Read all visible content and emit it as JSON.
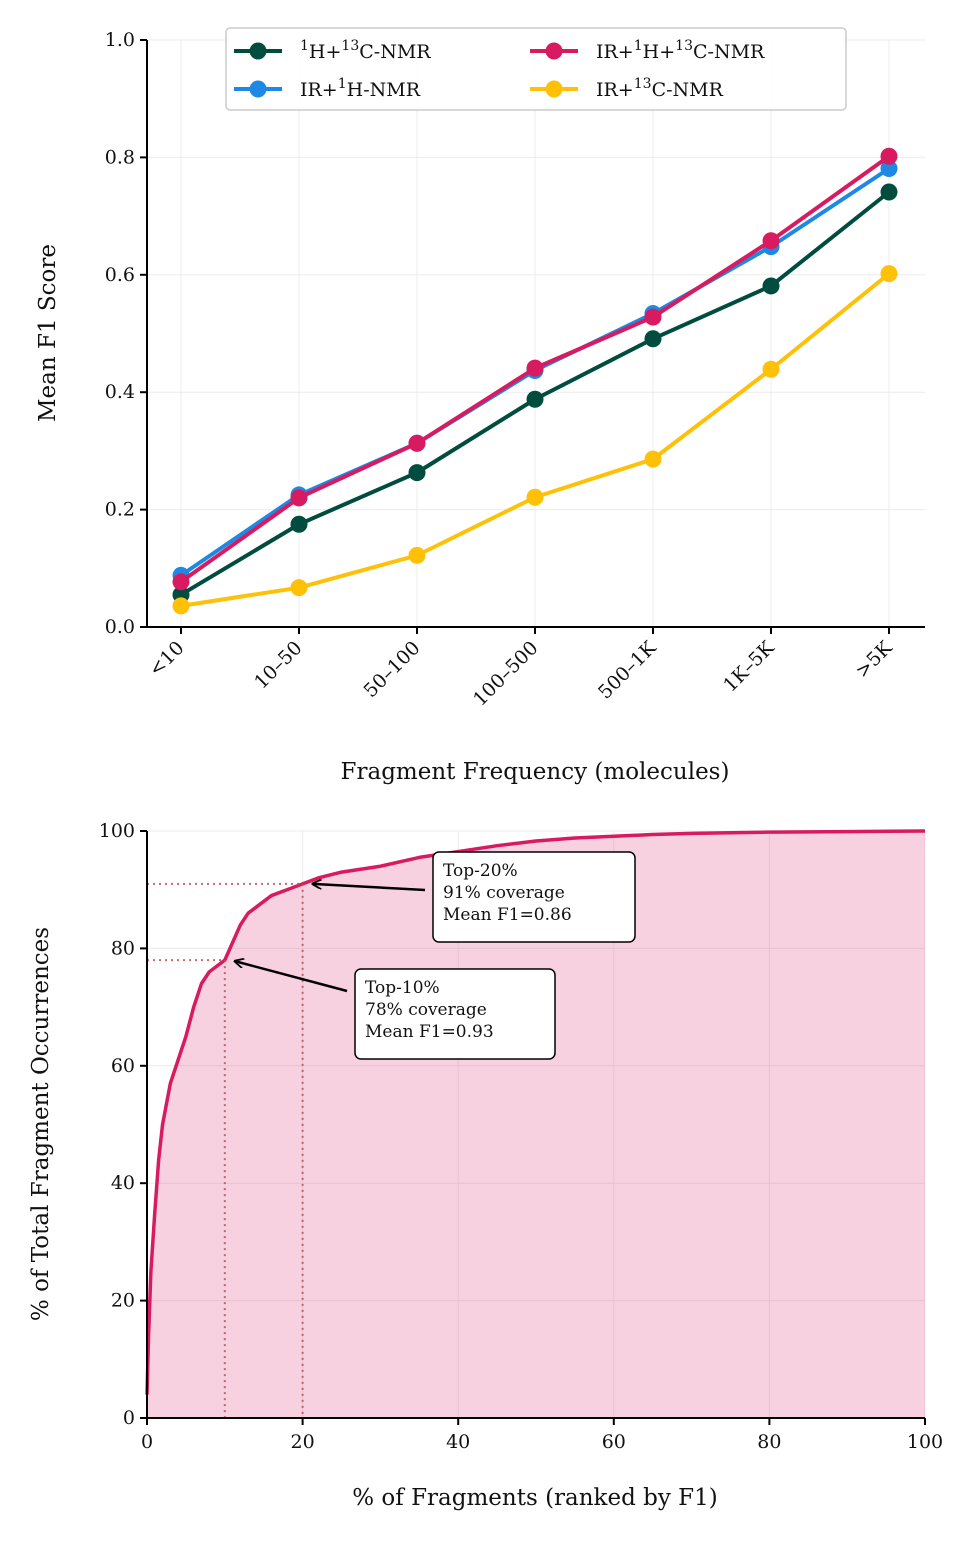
{
  "chart_data": [
    {
      "type": "line",
      "xlabel": "Fragment Frequency (molecules)",
      "ylabel": "Mean F1 Score",
      "categories": [
        "<10",
        "10–50",
        "50–100",
        "100–500",
        "500–1K",
        "1K–5K",
        ">5K"
      ],
      "ylim": [
        0.0,
        1.0
      ],
      "yticks": [
        "0.0",
        "0.2",
        "0.4",
        "0.6",
        "0.8",
        "1.0"
      ],
      "grid": true,
      "legend_position": "top-center",
      "series": [
        {
          "name_pre": "1",
          "name": "H+",
          "name_sup": "13",
          "name_post": "C-NMR",
          "label": "1H+13C-NMR",
          "color": "#004d40",
          "values": [
            0.055,
            0.175,
            0.263,
            0.388,
            0.491,
            0.581,
            0.741
          ]
        },
        {
          "name_pre": "",
          "name": "IR+",
          "name_sup": "1",
          "name_post": "H-NMR",
          "label": "IR+1H-NMR",
          "color": "#1e88e5",
          "values": [
            0.088,
            0.225,
            0.313,
            0.437,
            0.534,
            0.648,
            0.781
          ]
        },
        {
          "name_pre": "",
          "name": "IR+",
          "name_sup": "1",
          "name_post": "H+13C-NMR",
          "label": "IR+1H+13C-NMR",
          "color": "#d81b60",
          "values": [
            0.077,
            0.22,
            0.313,
            0.441,
            0.528,
            0.658,
            0.802
          ]
        },
        {
          "name_pre": "",
          "name": "IR+",
          "name_sup": "13",
          "name_post": "C-NMR",
          "label": "IR+13C-NMR",
          "color": "#ffc107",
          "values": [
            0.036,
            0.067,
            0.122,
            0.221,
            0.286,
            0.439,
            0.602
          ]
        }
      ]
    },
    {
      "type": "area",
      "xlabel": "% of Fragments (ranked by F1)",
      "ylabel": "% of Total Fragment Occurrences",
      "xlim": [
        0,
        100
      ],
      "ylim": [
        0,
        100
      ],
      "xticks": [
        "0",
        "20",
        "40",
        "60",
        "80",
        "100"
      ],
      "yticks": [
        "0",
        "20",
        "40",
        "60",
        "80",
        "100"
      ],
      "color": "#d81b60",
      "x": [
        0,
        0.2,
        0.5,
        1,
        1.5,
        2,
        3,
        4,
        5,
        6,
        7,
        8,
        9,
        10,
        11,
        12,
        13,
        14,
        15,
        16,
        18,
        20,
        22,
        25,
        30,
        35,
        40,
        45,
        50,
        55,
        60,
        65,
        70,
        80,
        90,
        100
      ],
      "y": [
        4,
        14,
        25,
        35,
        44,
        50,
        57,
        61,
        65,
        70,
        74,
        76,
        77,
        78,
        81,
        84,
        86,
        87,
        88,
        89,
        90,
        91,
        92,
        93,
        94,
        95.5,
        96.5,
        97.5,
        98.3,
        98.8,
        99.1,
        99.4,
        99.6,
        99.8,
        99.9,
        100
      ],
      "annotations": [
        {
          "lines": [
            "Top-20%",
            "91% coverage",
            "Mean F1=0.86"
          ],
          "x": 20,
          "y": 91
        },
        {
          "lines": [
            "Top-10%",
            "78% coverage",
            "Mean F1=0.93"
          ],
          "x": 10,
          "y": 78
        }
      ]
    }
  ]
}
